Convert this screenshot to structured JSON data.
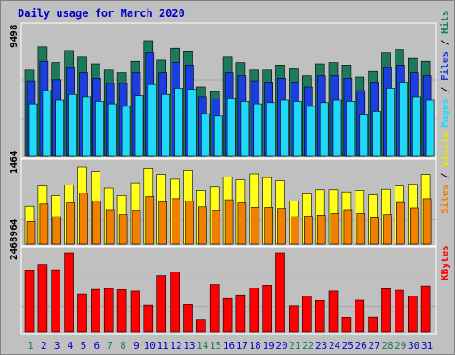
{
  "chart_data": {
    "type": "bar",
    "title": "Daily usage for March 2020",
    "categories": [
      "1",
      "2",
      "3",
      "4",
      "5",
      "6",
      "7",
      "8",
      "9",
      "10",
      "11",
      "12",
      "13",
      "14",
      "15",
      "16",
      "17",
      "18",
      "19",
      "20",
      "21",
      "22",
      "23",
      "24",
      "25",
      "26",
      "27",
      "28",
      "29",
      "30",
      "31"
    ],
    "weekend_days": [
      "1",
      "7",
      "8",
      "14",
      "15",
      "21",
      "22",
      "28",
      "29"
    ],
    "panels": [
      {
        "id": "top",
        "max_label": "9498",
        "ylim": [
          0,
          9498
        ],
        "series": [
          {
            "name": "Hits",
            "color": "#1a7a5a",
            "values": [
              7100,
              9000,
              7700,
              8700,
              8200,
              7600,
              7100,
              6900,
              7800,
              9498,
              7900,
              8900,
              8600,
              5700,
              5300,
              8200,
              7700,
              7100,
              7100,
              7500,
              7200,
              6600,
              7600,
              7700,
              7500,
              6500,
              7000,
              8500,
              8800,
              8100,
              7800
            ]
          },
          {
            "name": "Files",
            "color": "#1c3ee0",
            "values": [
              6200,
              7800,
              6300,
              7300,
              6900,
              6400,
              6000,
              6000,
              6900,
              8500,
              6900,
              7700,
              7500,
              4900,
              4700,
              6900,
              6600,
              6200,
              6100,
              6400,
              6100,
              5700,
              6600,
              6600,
              6400,
              5400,
              6100,
              7300,
              7500,
              6900,
              6600
            ]
          },
          {
            "name": "Pages",
            "color": "#20d8f8",
            "values": [
              4300,
              5400,
              4600,
              5100,
              4900,
              4500,
              4300,
              4100,
              5000,
              5900,
              5100,
              5600,
              5500,
              3500,
              3300,
              4800,
              4500,
              4300,
              4400,
              4600,
              4500,
              4100,
              4400,
              4600,
              4500,
              3400,
              3700,
              5600,
              6100,
              4900,
              4600
            ]
          }
        ]
      },
      {
        "id": "mid",
        "max_label": "1464",
        "ylim": [
          0,
          1464
        ],
        "series": [
          {
            "name": "Visits",
            "color": "#ffff18",
            "values": [
              720,
              1100,
              920,
              1120,
              1464,
              1370,
              1060,
              920,
              1160,
              1440,
              1320,
              1230,
              1390,
              1020,
              1080,
              1270,
              1220,
              1330,
              1260,
              1200,
              820,
              950,
              1030,
              1030,
              990,
              1020,
              930,
              1040,
              1100,
              1130,
              1320
            ]
          },
          {
            "name": "Sites",
            "color": "#f08000",
            "values": [
              430,
              760,
              520,
              780,
              970,
              820,
              640,
              560,
              630,
              900,
              800,
              860,
              820,
              710,
              630,
              840,
              780,
              700,
              700,
              680,
              520,
              530,
              550,
              580,
              640,
              580,
              500,
              560,
              790,
              690,
              860
            ]
          }
        ]
      },
      {
        "id": "bot",
        "max_label": "2468964",
        "ylim": [
          0,
          2468964
        ],
        "series": [
          {
            "name": "KBytes",
            "color": "#ff0000",
            "values": [
              1930000,
              2090000,
              1940000,
              2468964,
              1190000,
              1330000,
              1360000,
              1320000,
              1280000,
              830000,
              1760000,
              1870000,
              850000,
              370000,
              1480000,
              1050000,
              1160000,
              1380000,
              1460000,
              2468964,
              810000,
              1120000,
              990000,
              1280000,
              460000,
              1000000,
              470000,
              1350000,
              1300000,
              1130000,
              1440000
            ]
          }
        ]
      }
    ],
    "right_labels": {
      "top": [
        "Pages",
        "Files",
        "Hits"
      ],
      "mid": [
        "Sites",
        "Visits"
      ],
      "bot": [
        "KBytes"
      ]
    },
    "label_colors": {
      "Pages": "#20d8f8",
      "Files": "#1c3ee0",
      "Hits": "#1a7a5a",
      "Sites": "#f08000",
      "Visits": "#e8e800",
      "KBytes": "#ff0000",
      "sep": "#000000",
      "max": "#000000",
      "weekday": "#0000cc",
      "weekend": "#1a7a5a"
    }
  }
}
